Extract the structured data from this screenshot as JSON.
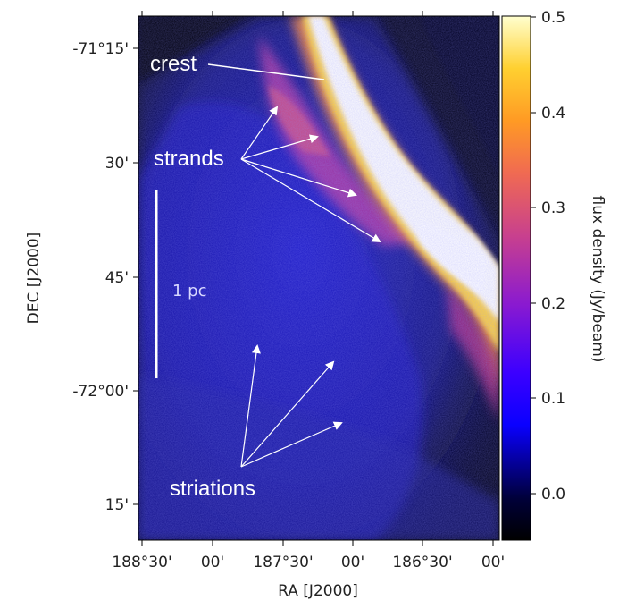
{
  "image": {
    "axes": {
      "xlabel": "RA [J2000]",
      "ylabel": "DEC [J2000]",
      "xticks": [
        "188°30'",
        "00'",
        "187°30'",
        "00'",
        "186°30'",
        "00'"
      ],
      "yticks": [
        "-71°15'",
        "30'",
        "45'",
        "-72°00'",
        "15'"
      ]
    },
    "colorbar": {
      "label": "flux density (Jy/beam)",
      "ticks": [
        "0.5",
        "0.4",
        "0.3",
        "0.2",
        "0.1",
        "0.0"
      ],
      "range": [
        -0.05,
        0.5
      ],
      "colormap": "gnuplot2"
    },
    "annotations": {
      "crest": "crest",
      "strands": "strands",
      "striations": "striations"
    },
    "scale_bar": "1 pc",
    "colors": {
      "background": "#02021a",
      "filament": "#ffffff",
      "arrow": "#ffffff"
    }
  }
}
